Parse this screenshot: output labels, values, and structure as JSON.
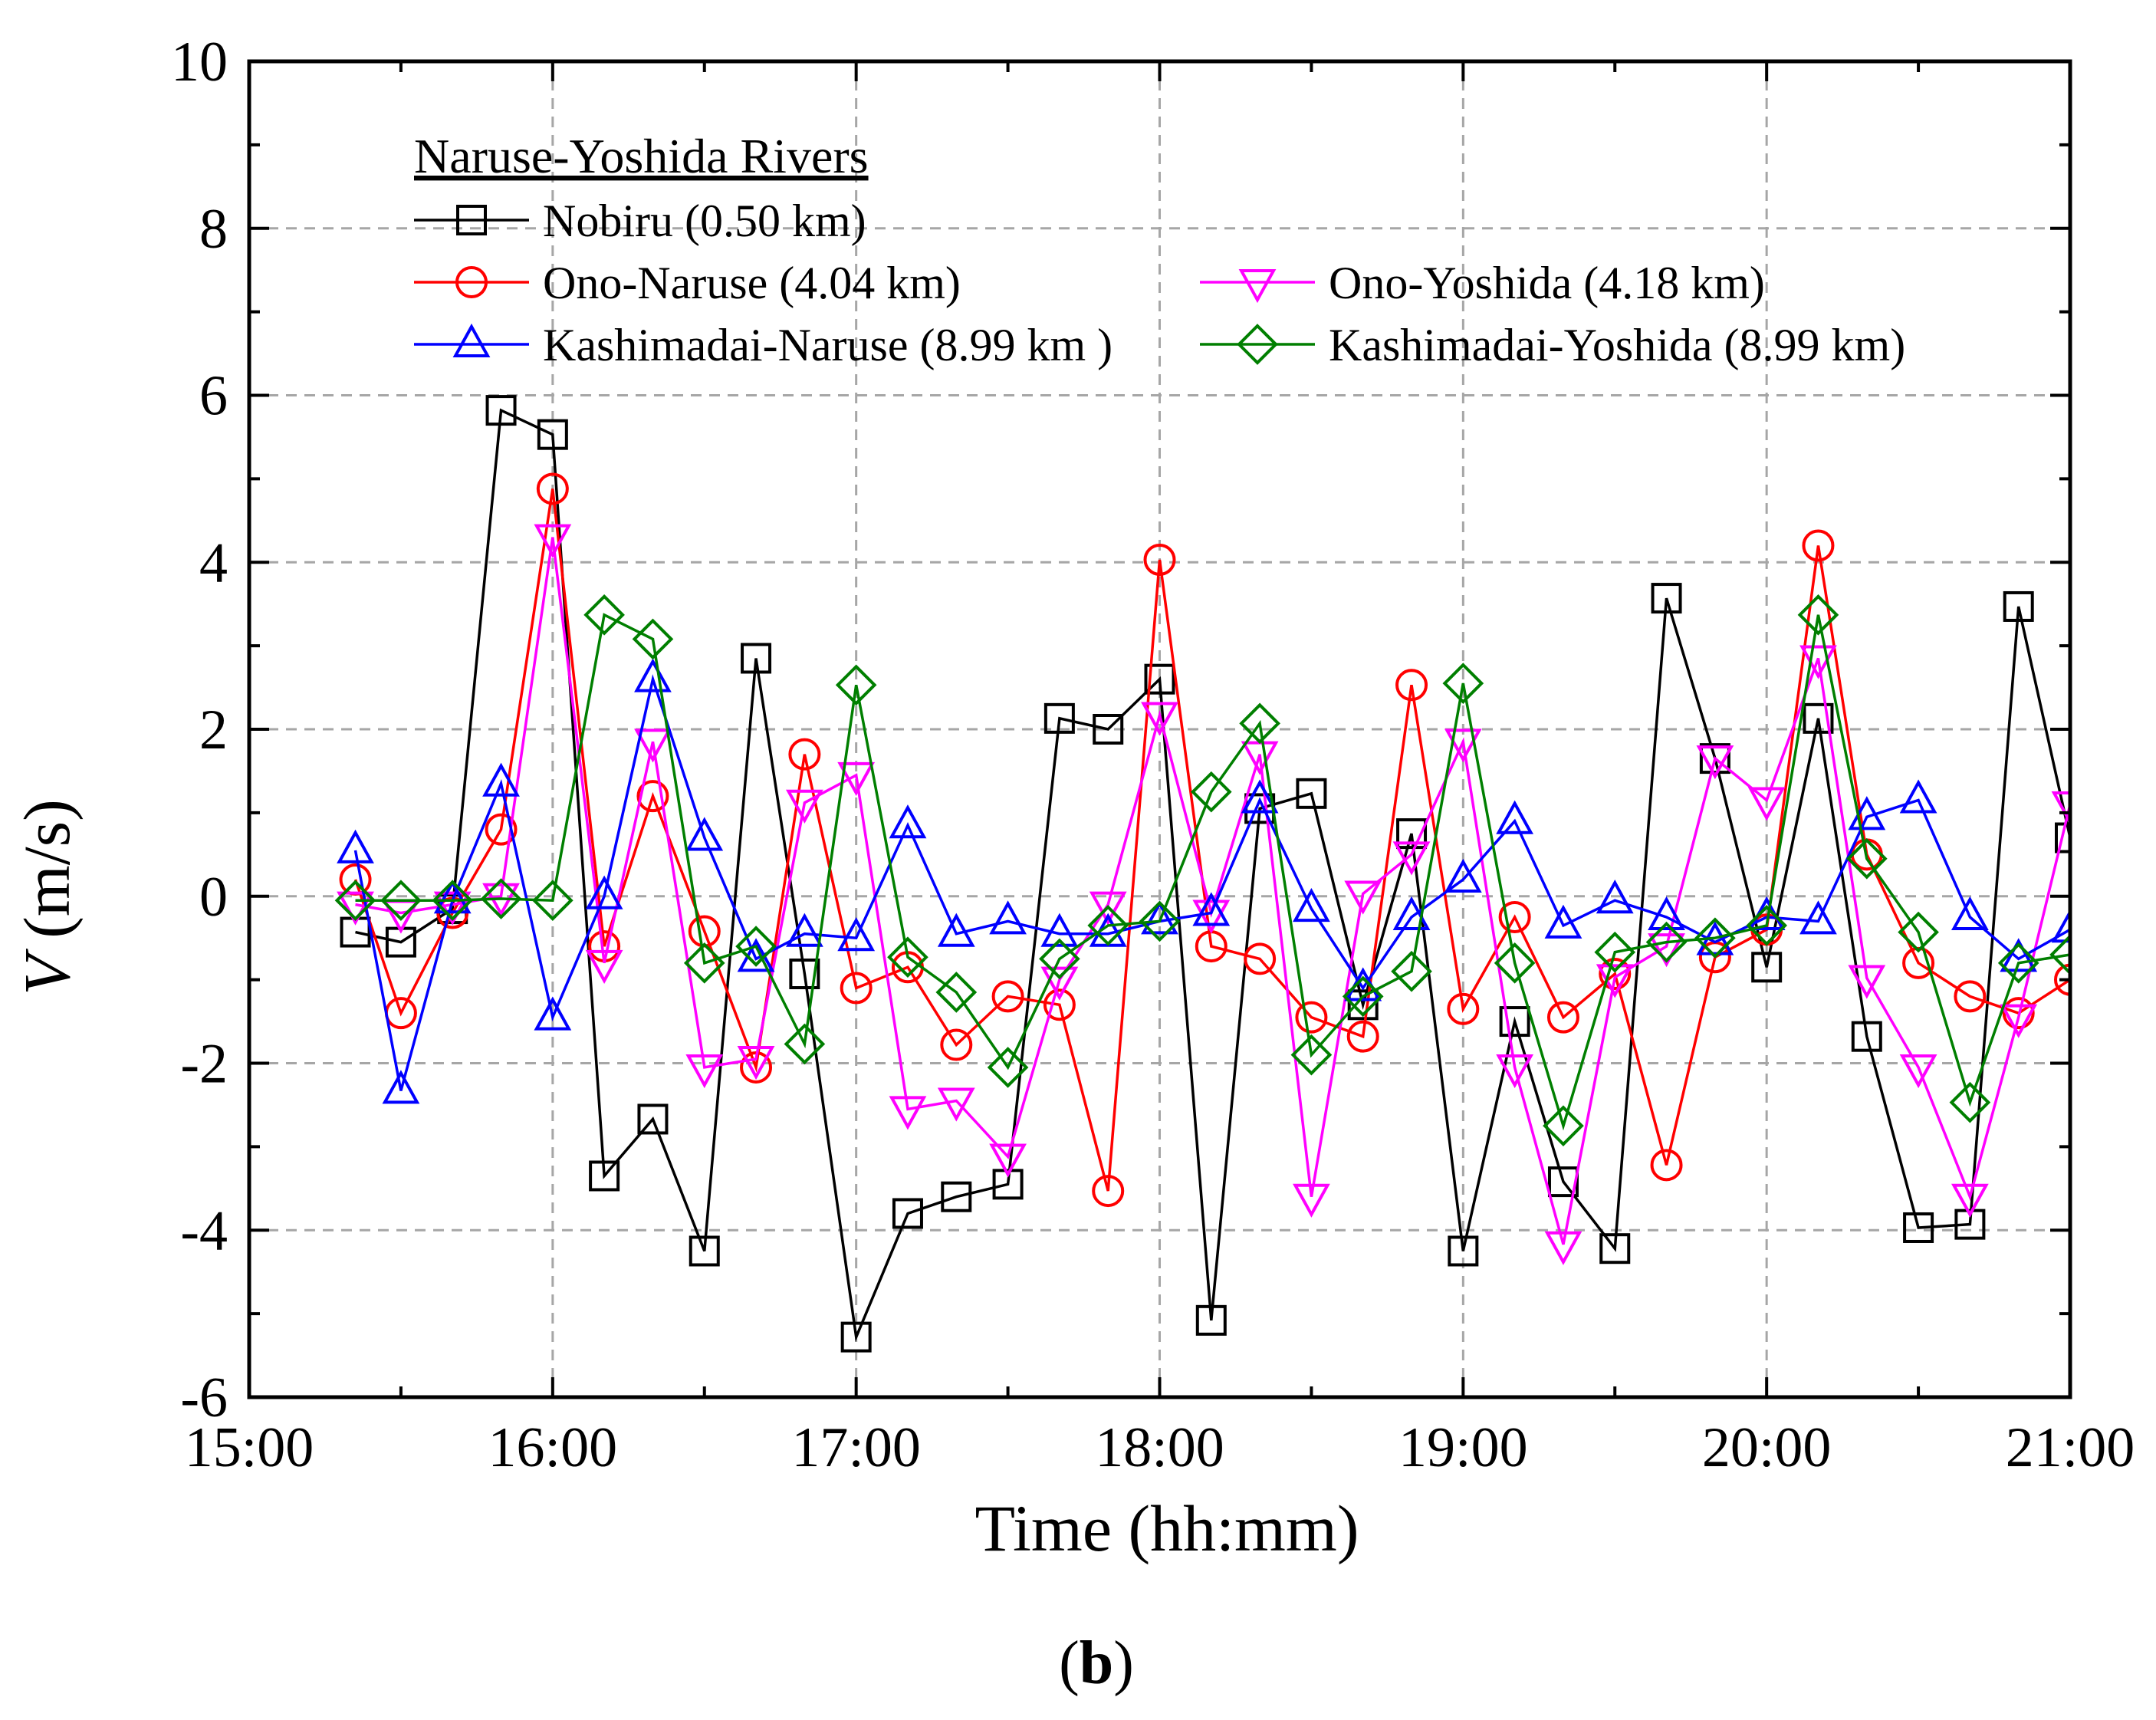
{
  "chart_data": {
    "type": "line",
    "title": "",
    "xlabel": "Time (hh:mm)",
    "ylabel_var": "V",
    "ylabel_unit": " (m/s)",
    "xlim": [
      0,
      6
    ],
    "ylim": [
      -6,
      10
    ],
    "x_ticks": [
      {
        "value": 0,
        "label": "15:00"
      },
      {
        "value": 1,
        "label": "16:00"
      },
      {
        "value": 2,
        "label": "17:00"
      },
      {
        "value": 3,
        "label": "18:00"
      },
      {
        "value": 4,
        "label": "19:00"
      },
      {
        "value": 5,
        "label": "20:00"
      },
      {
        "value": 6,
        "label": "21:00"
      }
    ],
    "y_ticks": [
      {
        "value": -6,
        "label": "-6"
      },
      {
        "value": -4,
        "label": "-4"
      },
      {
        "value": -2,
        "label": "-2"
      },
      {
        "value": 0,
        "label": "0"
      },
      {
        "value": 2,
        "label": "2"
      },
      {
        "value": 4,
        "label": "4"
      },
      {
        "value": 6,
        "label": "6"
      },
      {
        "value": 8,
        "label": "8"
      },
      {
        "value": 10,
        "label": "10"
      }
    ],
    "grid": true,
    "legend_title": "Naruse-Yoshida Rivers",
    "legend_position": "top",
    "caption_open": "(",
    "caption_letter": "b",
    "caption_close": ")",
    "x_unit_note": "hours after 15:00",
    "series": [
      {
        "name": "Nobiru (0.50 km)",
        "color": "#000000",
        "marker": "square",
        "points": [
          [
            0.35,
            -0.43
          ],
          [
            0.5,
            -0.55
          ],
          [
            0.67,
            -0.15
          ],
          [
            0.83,
            5.82
          ],
          [
            1.0,
            5.53
          ],
          [
            1.17,
            -3.35
          ],
          [
            1.33,
            -2.67
          ],
          [
            1.5,
            -4.25
          ],
          [
            1.67,
            2.85
          ],
          [
            1.83,
            -0.93
          ],
          [
            2.0,
            -5.28
          ],
          [
            2.17,
            -3.8
          ],
          [
            2.33,
            -3.6
          ],
          [
            2.5,
            -3.45
          ],
          [
            2.67,
            2.13
          ],
          [
            2.83,
            2.0
          ],
          [
            3.0,
            2.6
          ],
          [
            3.17,
            -5.08
          ],
          [
            3.33,
            1.05
          ],
          [
            3.5,
            1.23
          ],
          [
            3.67,
            -1.3
          ],
          [
            3.83,
            0.75
          ],
          [
            4.0,
            -4.25
          ],
          [
            4.17,
            -1.5
          ],
          [
            4.33,
            -3.42
          ],
          [
            4.5,
            -4.22
          ],
          [
            4.67,
            3.57
          ],
          [
            4.83,
            1.65
          ],
          [
            5.0,
            -0.85
          ],
          [
            5.17,
            2.13
          ],
          [
            5.33,
            -1.68
          ],
          [
            5.5,
            -3.97
          ],
          [
            5.67,
            -3.93
          ],
          [
            5.83,
            3.47
          ],
          [
            6.0,
            0.7
          ]
        ]
      },
      {
        "name": "Ono-Naruse (4.04 km)",
        "color": "#ff0000",
        "marker": "circle",
        "points": [
          [
            0.35,
            0.2
          ],
          [
            0.5,
            -1.4
          ],
          [
            0.67,
            -0.2
          ],
          [
            0.83,
            0.8
          ],
          [
            1.0,
            4.88
          ],
          [
            1.17,
            -0.6
          ],
          [
            1.33,
            1.2
          ],
          [
            1.5,
            -0.42
          ],
          [
            1.67,
            -2.05
          ],
          [
            1.83,
            1.7
          ],
          [
            2.0,
            -1.1
          ],
          [
            2.17,
            -0.85
          ],
          [
            2.33,
            -1.78
          ],
          [
            2.5,
            -1.2
          ],
          [
            2.67,
            -1.3
          ],
          [
            2.83,
            -3.53
          ],
          [
            3.0,
            4.03
          ],
          [
            3.17,
            -0.6
          ],
          [
            3.33,
            -0.75
          ],
          [
            3.5,
            -1.45
          ],
          [
            3.67,
            -1.68
          ],
          [
            3.83,
            2.53
          ],
          [
            4.0,
            -1.35
          ],
          [
            4.17,
            -0.25
          ],
          [
            4.33,
            -1.45
          ],
          [
            4.5,
            -0.93
          ],
          [
            4.67,
            -3.22
          ],
          [
            4.83,
            -0.73
          ],
          [
            5.0,
            -0.4
          ],
          [
            5.17,
            4.2
          ],
          [
            5.33,
            0.5
          ],
          [
            5.5,
            -0.8
          ],
          [
            5.67,
            -1.2
          ],
          [
            5.83,
            -1.4
          ],
          [
            6.0,
            -1.0
          ]
        ]
      },
      {
        "name": "Ono-Yoshida (4.18 km)",
        "color": "#ff00ff",
        "marker": "triangle-down",
        "points": [
          [
            0.35,
            -0.1
          ],
          [
            0.5,
            -0.2
          ],
          [
            0.67,
            -0.1
          ],
          [
            0.83,
            0.0
          ],
          [
            1.0,
            4.3
          ],
          [
            1.17,
            -0.8
          ],
          [
            1.33,
            1.85
          ],
          [
            1.5,
            -2.05
          ],
          [
            1.67,
            -1.95
          ],
          [
            1.83,
            1.12
          ],
          [
            2.0,
            1.45
          ],
          [
            2.17,
            -2.55
          ],
          [
            2.33,
            -2.45
          ],
          [
            2.5,
            -3.12
          ],
          [
            2.67,
            -1.0
          ],
          [
            2.83,
            -0.1
          ],
          [
            3.0,
            2.17
          ],
          [
            3.17,
            -0.2
          ],
          [
            3.33,
            1.7
          ],
          [
            3.5,
            -3.6
          ],
          [
            3.67,
            0.03
          ],
          [
            3.83,
            0.5
          ],
          [
            4.0,
            1.85
          ],
          [
            4.17,
            -2.05
          ],
          [
            4.33,
            -4.17
          ],
          [
            4.5,
            -0.97
          ],
          [
            4.67,
            -0.6
          ],
          [
            4.83,
            1.65
          ],
          [
            5.0,
            1.15
          ],
          [
            5.17,
            2.85
          ],
          [
            5.33,
            -0.98
          ],
          [
            5.5,
            -2.05
          ],
          [
            5.67,
            -3.6
          ],
          [
            5.83,
            -1.45
          ],
          [
            6.0,
            1.1
          ]
        ]
      },
      {
        "name": "Kashimadai-Naruse (8.99 km )",
        "color": "#0000ff",
        "marker": "triangle-up",
        "points": [
          [
            0.35,
            0.55
          ],
          [
            0.5,
            -2.33
          ],
          [
            0.67,
            -0.05
          ],
          [
            0.83,
            1.35
          ],
          [
            1.0,
            -1.45
          ],
          [
            1.17,
            0.0
          ],
          [
            1.33,
            2.6
          ],
          [
            1.5,
            0.7
          ],
          [
            1.67,
            -0.75
          ],
          [
            1.83,
            -0.45
          ],
          [
            2.0,
            -0.5
          ],
          [
            2.17,
            0.85
          ],
          [
            2.33,
            -0.45
          ],
          [
            2.5,
            -0.3
          ],
          [
            2.67,
            -0.45
          ],
          [
            2.83,
            -0.45
          ],
          [
            3.0,
            -0.3
          ],
          [
            3.17,
            -0.2
          ],
          [
            3.33,
            1.15
          ],
          [
            3.5,
            -0.15
          ],
          [
            3.67,
            -1.1
          ],
          [
            3.83,
            -0.25
          ],
          [
            4.0,
            0.2
          ],
          [
            4.17,
            0.9
          ],
          [
            4.33,
            -0.35
          ],
          [
            4.5,
            -0.05
          ],
          [
            4.67,
            -0.25
          ],
          [
            4.83,
            -0.55
          ],
          [
            5.0,
            -0.25
          ],
          [
            5.17,
            -0.3
          ],
          [
            5.33,
            0.95
          ],
          [
            5.5,
            1.15
          ],
          [
            5.67,
            -0.25
          ],
          [
            5.83,
            -0.75
          ],
          [
            6.0,
            -0.4
          ]
        ]
      },
      {
        "name": "Kashimadai-Yoshida (8.99 km)",
        "color": "#007f00",
        "marker": "diamond",
        "points": [
          [
            0.35,
            -0.05
          ],
          [
            0.5,
            -0.05
          ],
          [
            0.67,
            -0.05
          ],
          [
            0.83,
            -0.03
          ],
          [
            1.0,
            -0.05
          ],
          [
            1.17,
            3.37
          ],
          [
            1.33,
            3.08
          ],
          [
            1.5,
            -0.8
          ],
          [
            1.67,
            -0.6
          ],
          [
            1.83,
            -1.77
          ],
          [
            2.0,
            2.53
          ],
          [
            2.17,
            -0.73
          ],
          [
            2.33,
            -1.15
          ],
          [
            2.5,
            -2.05
          ],
          [
            2.67,
            -0.75
          ],
          [
            2.83,
            -0.35
          ],
          [
            3.0,
            -0.3
          ],
          [
            3.17,
            1.25
          ],
          [
            3.33,
            2.07
          ],
          [
            3.5,
            -1.9
          ],
          [
            3.67,
            -1.2
          ],
          [
            3.83,
            -0.9
          ],
          [
            4.0,
            2.55
          ],
          [
            4.17,
            -0.8
          ],
          [
            4.33,
            -2.75
          ],
          [
            4.5,
            -0.67
          ],
          [
            4.67,
            -0.55
          ],
          [
            4.83,
            -0.5
          ],
          [
            5.0,
            -0.35
          ],
          [
            5.17,
            3.37
          ],
          [
            5.33,
            0.45
          ],
          [
            5.5,
            -0.43
          ],
          [
            5.67,
            -2.47
          ],
          [
            5.83,
            -0.8
          ],
          [
            6.0,
            -0.7
          ]
        ]
      }
    ]
  }
}
